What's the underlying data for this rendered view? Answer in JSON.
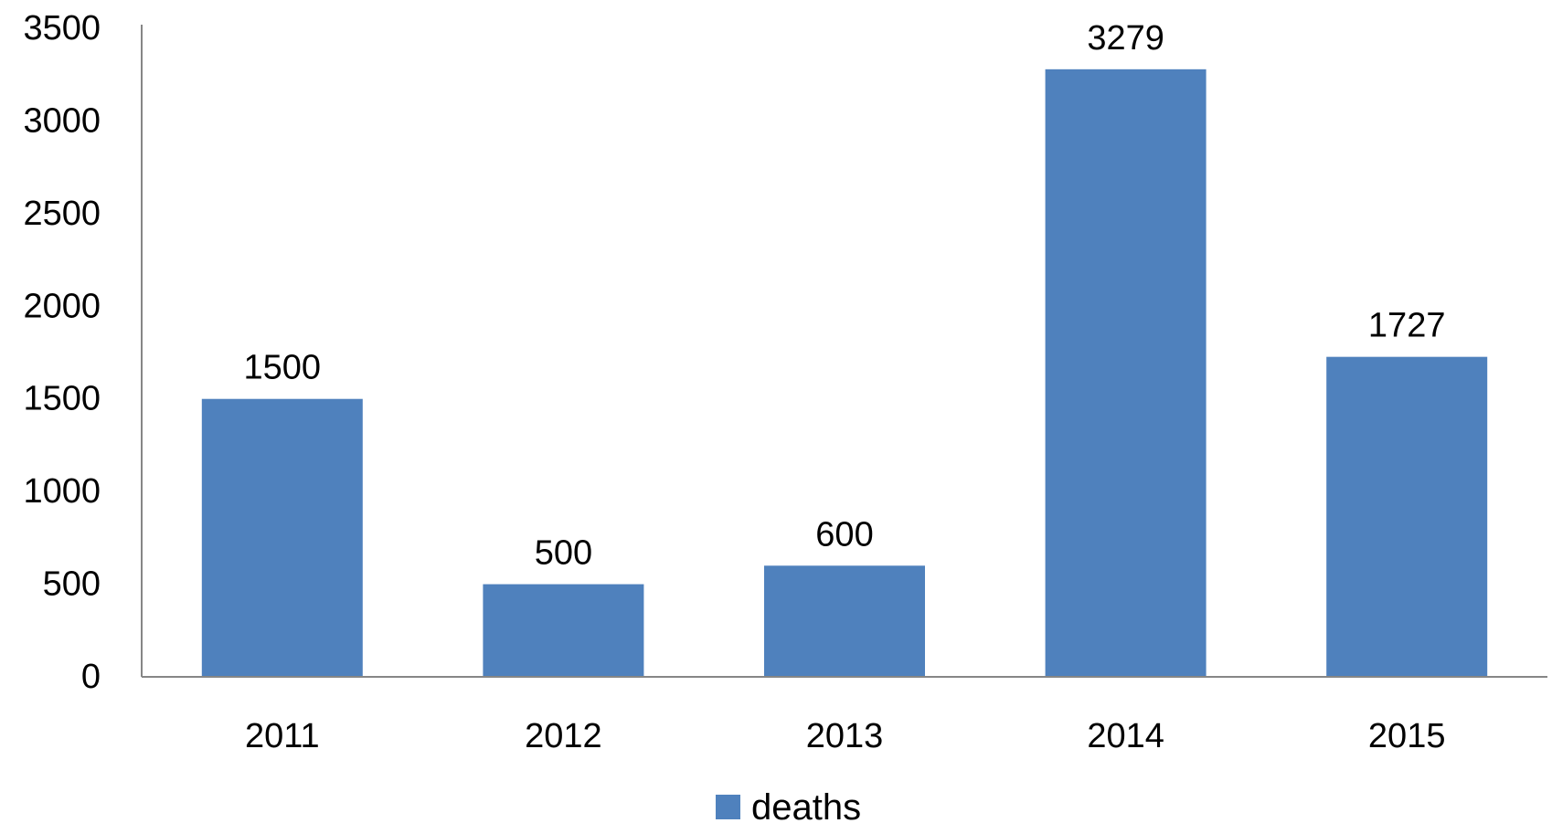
{
  "chart_data": {
    "type": "bar",
    "categories": [
      "2011",
      "2012",
      "2013",
      "2014",
      "2015"
    ],
    "series": [
      {
        "name": "deaths",
        "values": [
          1500,
          500,
          600,
          3279,
          1727
        ],
        "color": "#4F81BD"
      }
    ],
    "data_labels": [
      "1500",
      "500",
      "600",
      "3279",
      "1727"
    ],
    "yticks": [
      "0",
      "500",
      "1000",
      "1500",
      "2000",
      "2500",
      "3000",
      "3500"
    ],
    "ylim": [
      0,
      3500
    ],
    "title": "",
    "xlabel": "",
    "ylabel": "",
    "grid": false,
    "legend": {
      "position": "bottom",
      "entries": [
        "deaths"
      ]
    },
    "axis_color": "#868686"
  }
}
